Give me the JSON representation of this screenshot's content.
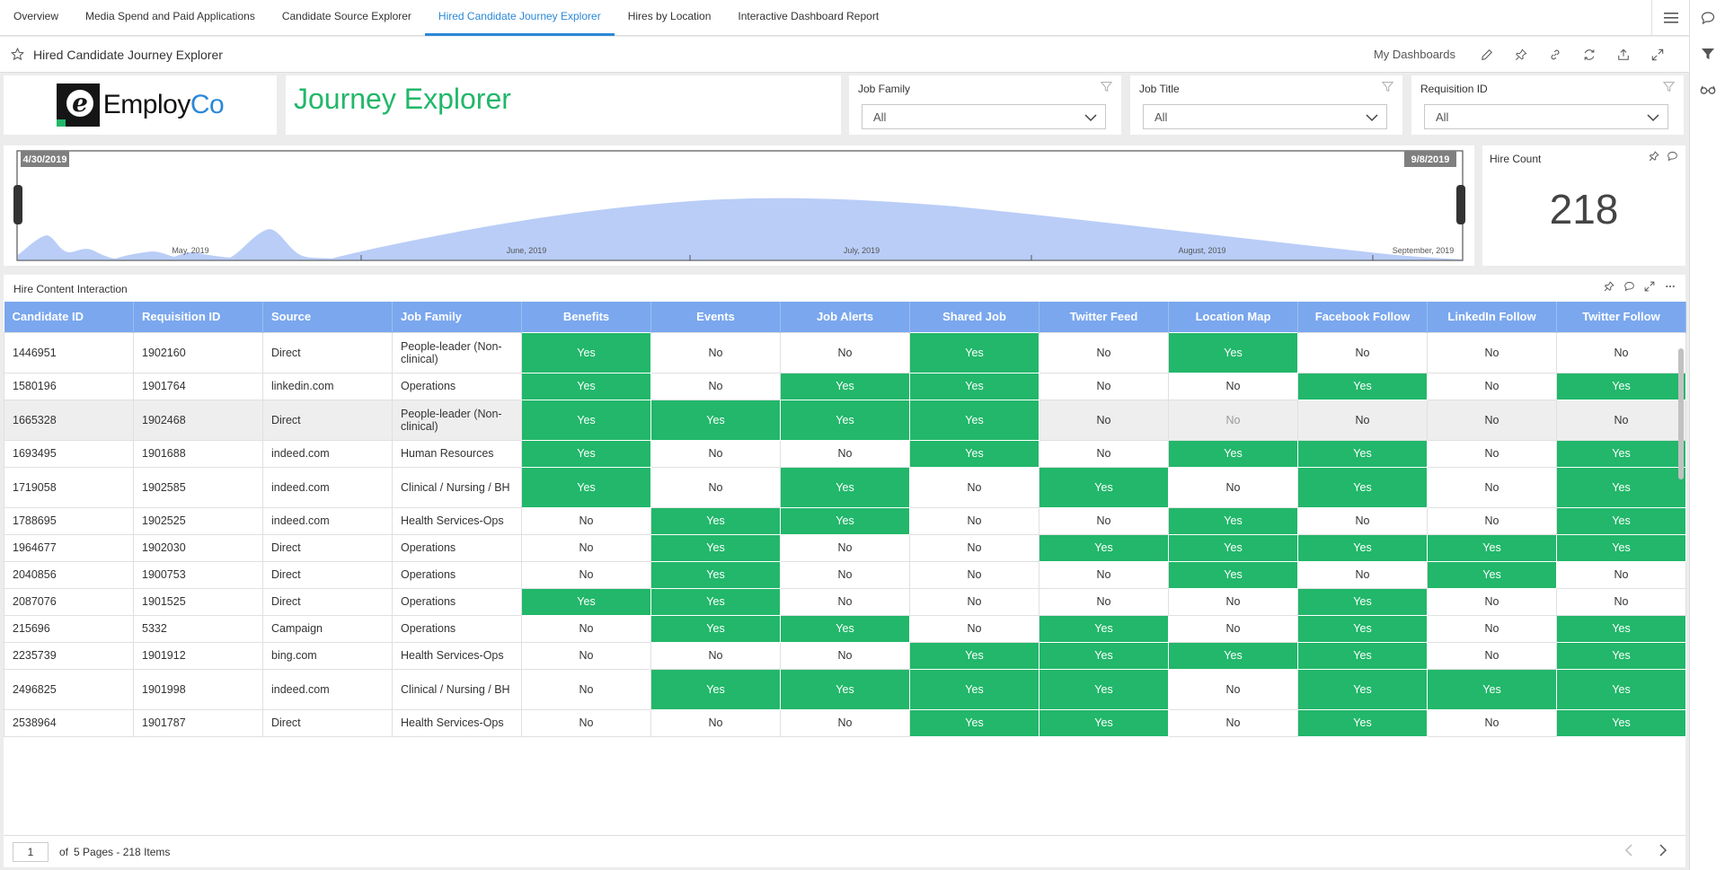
{
  "tabs": [
    {
      "label": "Overview"
    },
    {
      "label": "Media Spend and Paid Applications"
    },
    {
      "label": "Candidate Source Explorer"
    },
    {
      "label": "Hired Candidate Journey Explorer"
    },
    {
      "label": "Hires by Location"
    },
    {
      "label": "Interactive Dashboard Report"
    }
  ],
  "titlebar": {
    "title": "Hired Candidate Journey Explorer",
    "my_dashboards": "My Dashboards"
  },
  "logo": {
    "name_main": "Employ",
    "name_accent": "Co",
    "mark": "e"
  },
  "page_title": "Journey Explorer",
  "filters": [
    {
      "label": "Job Family",
      "value": "All"
    },
    {
      "label": "Job Title",
      "value": "All"
    },
    {
      "label": "Requisition ID",
      "value": "All"
    }
  ],
  "timeline": {
    "start_date": "4/30/2019",
    "end_date": "9/8/2019",
    "month_labels": [
      "May, 2019",
      "June, 2019",
      "July, 2019",
      "August, 2019",
      "September, 2019"
    ]
  },
  "kpi": {
    "label": "Hire Count",
    "value": "218"
  },
  "table": {
    "title": "Hire Content Interaction",
    "columns": [
      "Candidate ID",
      "Requisition ID",
      "Source",
      "Job Family",
      "Benefits",
      "Events",
      "Job Alerts",
      "Shared Job",
      "Twitter Feed",
      "Location Map",
      "Facebook Follow",
      "LinkedIn Follow",
      "Twitter Follow"
    ],
    "rows": [
      [
        "1446951",
        "1902160",
        "Direct",
        "People-leader (Non-clinical)",
        "Yes",
        "No",
        "No",
        "Yes",
        "No",
        "Yes",
        "No",
        "No",
        "No"
      ],
      [
        "1580196",
        "1901764",
        "linkedin.com",
        "Operations",
        "Yes",
        "No",
        "Yes",
        "Yes",
        "No",
        "No",
        "Yes",
        "No",
        "Yes"
      ],
      [
        "1665328",
        "1902468",
        "Direct",
        "People-leader (Non-clinical)",
        "Yes",
        "Yes",
        "Yes",
        "Yes",
        "No",
        "No",
        "No",
        "No",
        "No"
      ],
      [
        "1693495",
        "1901688",
        "indeed.com",
        "Human Resources",
        "Yes",
        "No",
        "No",
        "Yes",
        "No",
        "Yes",
        "Yes",
        "No",
        "Yes"
      ],
      [
        "1719058",
        "1902585",
        "indeed.com",
        "Clinical / Nursing / BH",
        "Yes",
        "No",
        "Yes",
        "No",
        "Yes",
        "No",
        "Yes",
        "No",
        "Yes"
      ],
      [
        "1788695",
        "1902525",
        "indeed.com",
        "Health Services-Ops",
        "No",
        "Yes",
        "Yes",
        "No",
        "No",
        "Yes",
        "No",
        "No",
        "Yes"
      ],
      [
        "1964677",
        "1902030",
        "Direct",
        "Operations",
        "No",
        "Yes",
        "No",
        "No",
        "Yes",
        "Yes",
        "Yes",
        "Yes",
        "Yes"
      ],
      [
        "2040856",
        "1900753",
        "Direct",
        "Operations",
        "No",
        "Yes",
        "No",
        "No",
        "No",
        "Yes",
        "No",
        "Yes",
        "No"
      ],
      [
        "2087076",
        "1901525",
        "Direct",
        "Operations",
        "Yes",
        "Yes",
        "No",
        "No",
        "No",
        "No",
        "Yes",
        "No",
        "No"
      ],
      [
        "215696",
        "5332",
        "Campaign",
        "Operations",
        "No",
        "Yes",
        "Yes",
        "No",
        "Yes",
        "No",
        "Yes",
        "No",
        "Yes"
      ],
      [
        "2235739",
        "1901912",
        "bing.com",
        "Health Services-Ops",
        "No",
        "No",
        "No",
        "Yes",
        "Yes",
        "Yes",
        "Yes",
        "No",
        "Yes"
      ],
      [
        "2496825",
        "1901998",
        "indeed.com",
        "Clinical / Nursing / BH",
        "No",
        "Yes",
        "Yes",
        "Yes",
        "Yes",
        "No",
        "Yes",
        "Yes",
        "Yes"
      ],
      [
        "2538964",
        "1901787",
        "Direct",
        "Health Services-Ops",
        "No",
        "No",
        "No",
        "Yes",
        "Yes",
        "No",
        "Yes",
        "No",
        "Yes"
      ]
    ]
  },
  "pager": {
    "page": "1",
    "summary_of": "of",
    "summary": "5 Pages - 218 Items"
  },
  "colors": {
    "accent": "#2b88d8",
    "yes_green": "#22b76a",
    "header_blue": "#7aa7ee",
    "area_fill": "#b9cdf7"
  }
}
